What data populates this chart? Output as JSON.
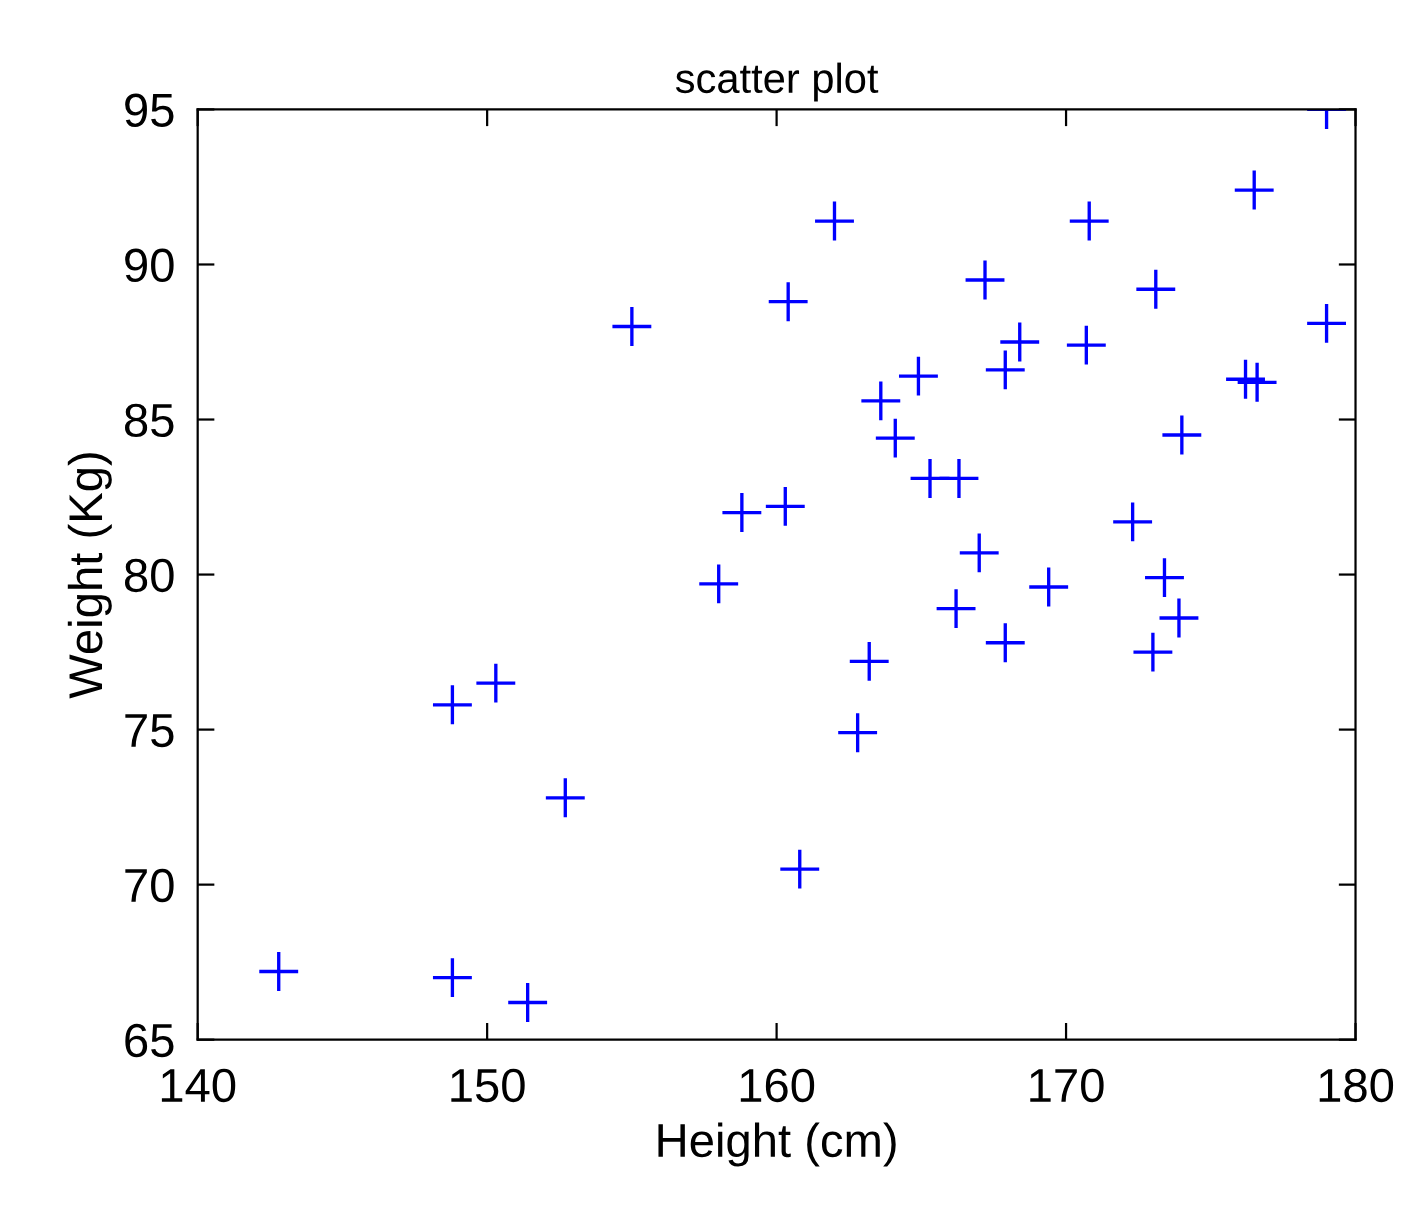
{
  "chart_data": {
    "type": "scatter",
    "title": "scatter plot",
    "xlabel": "Height (cm)",
    "ylabel": "Weight (Kg)",
    "x": [
      142.8,
      148.8,
      151.4,
      148.8,
      150.3,
      152.7,
      155.0,
      158.0,
      158.8,
      160.3,
      160.4,
      160.8,
      162.0,
      162.8,
      163.2,
      163.6,
      164.1,
      164.9,
      165.3,
      166.2,
      166.3,
      167.0,
      167.2,
      167.9,
      167.9,
      168.4,
      169.4,
      170.8,
      170.7,
      172.3,
      173.0,
      173.1,
      173.4,
      173.9,
      174.0,
      176.2,
      176.6,
      176.5,
      179.0,
      179.0
    ],
    "series": [
      {
        "color": "#0000ff",
        "values": [
          67.2,
          67.0,
          66.2,
          75.8,
          76.5,
          72.8,
          88.0,
          79.7,
          82.0,
          82.2,
          88.8,
          70.5,
          91.4,
          74.9,
          77.2,
          85.6,
          84.4,
          86.4,
          83.1,
          78.9,
          83.1,
          80.7,
          89.5,
          77.8,
          86.6,
          87.5,
          79.6,
          91.4,
          87.4,
          81.7,
          77.5,
          89.2,
          79.9,
          78.6,
          84.5,
          86.3,
          86.2,
          92.4,
          88.1,
          95.0
        ]
      }
    ],
    "xlim": [
      140,
      180
    ],
    "ylim": [
      65,
      95
    ],
    "xticks": [
      140,
      150,
      160,
      170,
      180
    ],
    "yticks": [
      65,
      70,
      75,
      80,
      85,
      90,
      95
    ],
    "marker": "cross",
    "grid": false,
    "legend": false
  }
}
